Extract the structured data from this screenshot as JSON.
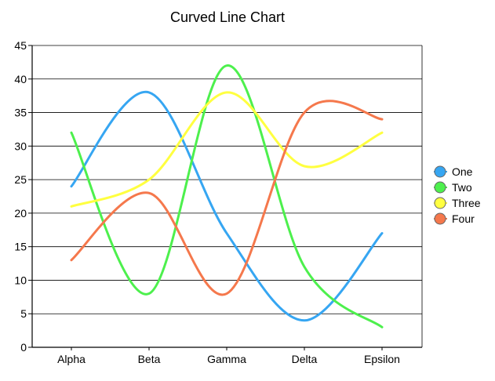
{
  "chart_data": {
    "type": "line",
    "curve": "smooth",
    "title": "Curved Line Chart",
    "xlabel": "",
    "ylabel": "",
    "categories": [
      "Alpha",
      "Beta",
      "Gamma",
      "Delta",
      "Epsilon"
    ],
    "ylim": [
      0,
      45
    ],
    "yticks": [
      0,
      5,
      10,
      15,
      20,
      25,
      30,
      35,
      40,
      45
    ],
    "grid": true,
    "legend_position": "right",
    "series": [
      {
        "name": "One",
        "color": "#36a6f2",
        "values": [
          24,
          38,
          17,
          4,
          17
        ]
      },
      {
        "name": "Two",
        "color": "#4df04d",
        "values": [
          32,
          8,
          42,
          12,
          3
        ]
      },
      {
        "name": "Three",
        "color": "#ffff40",
        "values": [
          21,
          25,
          38,
          27,
          32
        ]
      },
      {
        "name": "Four",
        "color": "#f5784c",
        "values": [
          13,
          23,
          8,
          35,
          34
        ]
      }
    ]
  }
}
